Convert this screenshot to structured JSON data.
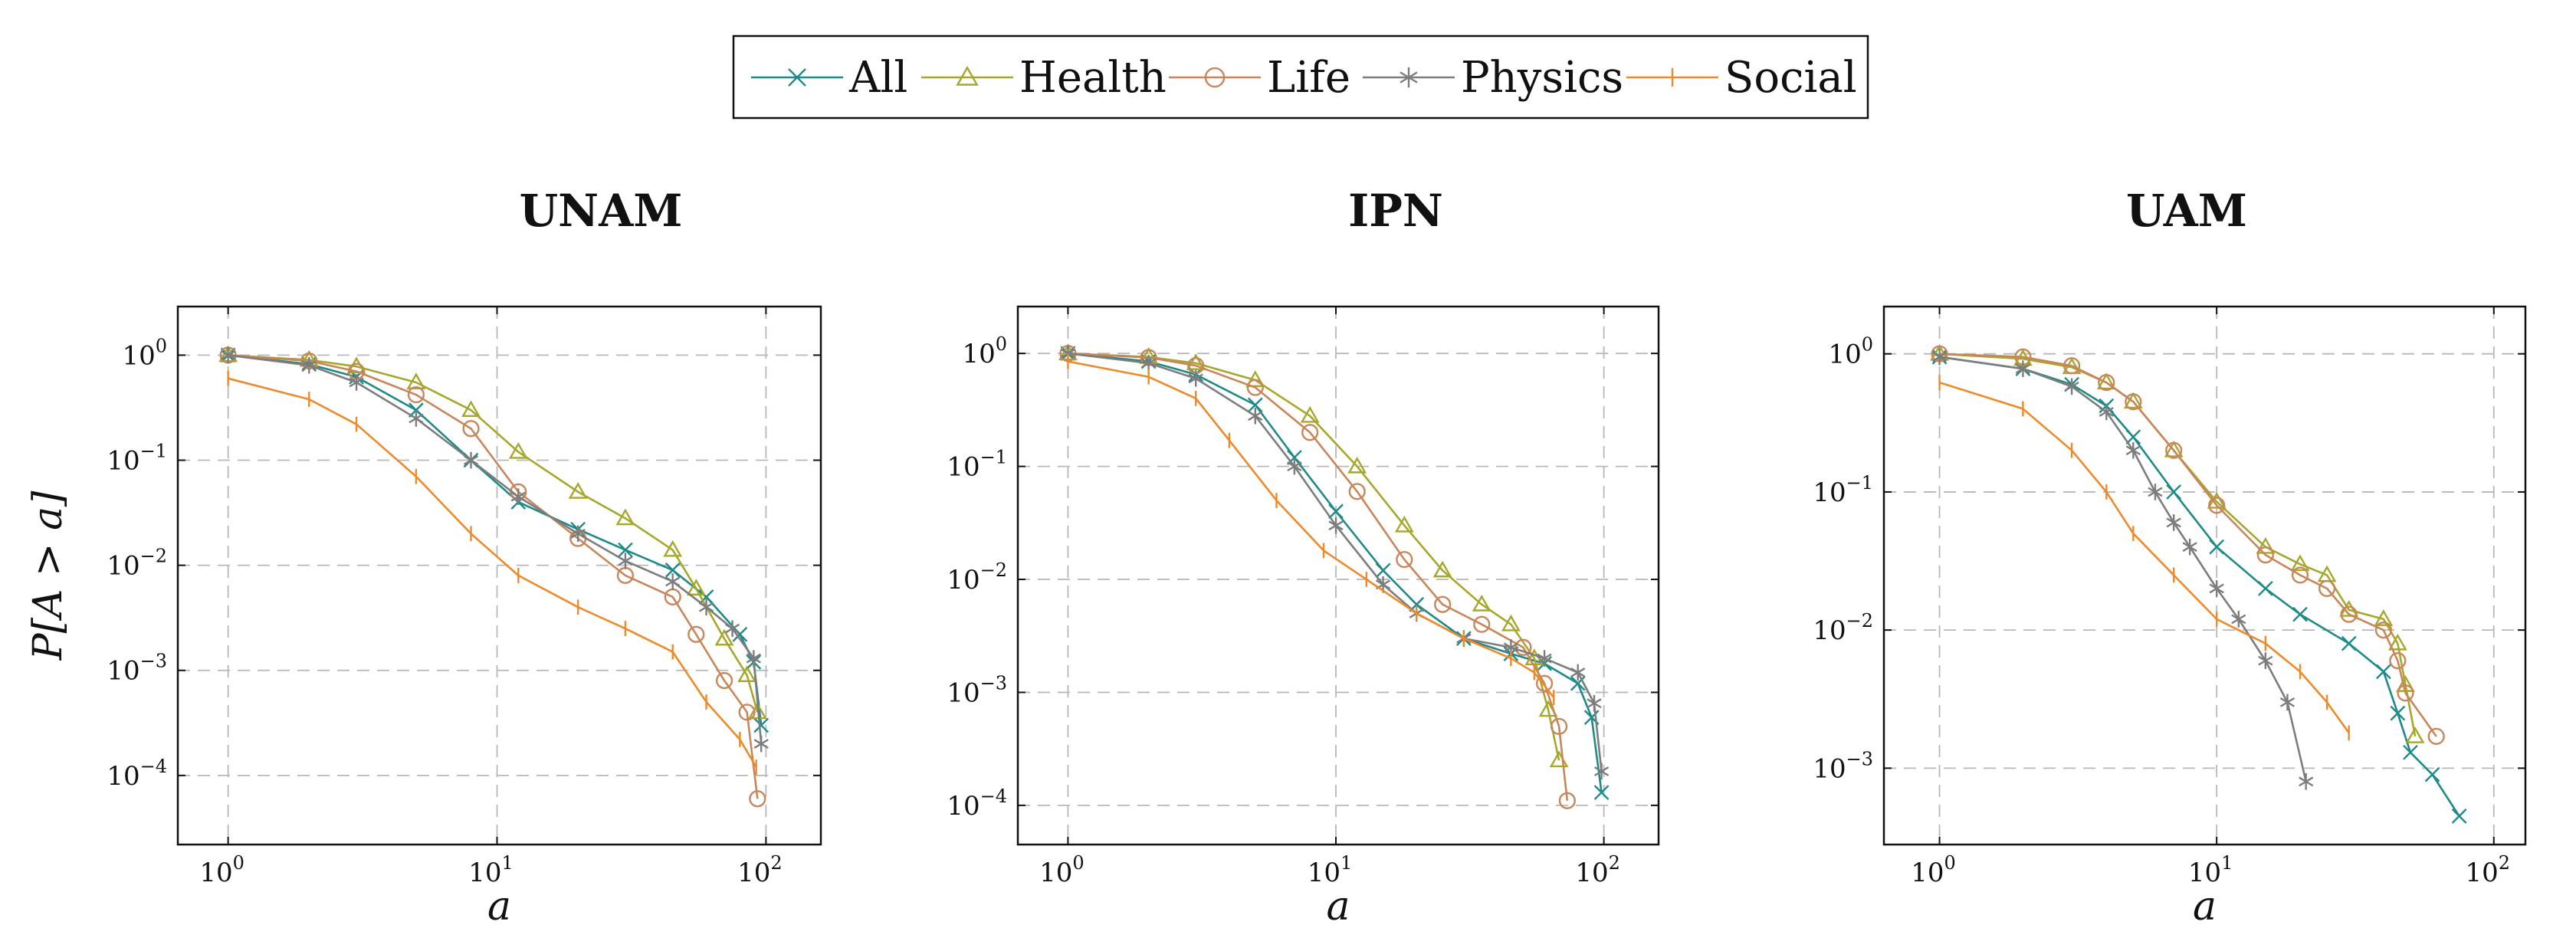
{
  "chart_data": {
    "type": "line",
    "scale": "log-log",
    "legend": {
      "position": "top-center",
      "entries": [
        "All",
        "Health",
        "Life",
        "Physics",
        "Social"
      ]
    },
    "series_style": {
      "All": {
        "color": "#1f8a8a",
        "marker": "x"
      },
      "Health": {
        "color": "#a5a82b",
        "marker": "triangle"
      },
      "Life": {
        "color": "#c8865a",
        "marker": "circle"
      },
      "Physics": {
        "color": "#7d7d7d",
        "marker": "asterisk"
      },
      "Social": {
        "color": "#ee8a2a",
        "marker": "vbar"
      }
    },
    "panels": [
      {
        "title": "UNAM",
        "xlabel": "a",
        "ylabel": "P[A > a]",
        "xlim": [
          0.65,
          160
        ],
        "ylim": [
          2.2e-05,
          2.9
        ],
        "xticks": [
          {
            "base": "10",
            "exp": "0"
          },
          {
            "base": "10",
            "exp": "1"
          },
          {
            "base": "10",
            "exp": "2"
          }
        ],
        "yticks": [
          {
            "base": "10",
            "exp": "0"
          },
          {
            "base": "10",
            "exp": "−1"
          },
          {
            "base": "10",
            "exp": "−2"
          },
          {
            "base": "10",
            "exp": "−3"
          },
          {
            "base": "10",
            "exp": "−4"
          }
        ],
        "xtick_values": [
          1,
          10,
          100
        ],
        "ytick_values": [
          1,
          0.1,
          0.01,
          0.001,
          0.0001
        ],
        "series": [
          {
            "name": "All",
            "points": [
              [
                1,
                1.0
              ],
              [
                2,
                0.82
              ],
              [
                3,
                0.62
              ],
              [
                5,
                0.3
              ],
              [
                8,
                0.1
              ],
              [
                12,
                0.04
              ],
              [
                20,
                0.022
              ],
              [
                30,
                0.014
              ],
              [
                45,
                0.009
              ],
              [
                60,
                0.005
              ],
              [
                80,
                0.0022
              ],
              [
                90,
                0.0012
              ],
              [
                96,
                0.0003
              ]
            ]
          },
          {
            "name": "Health",
            "points": [
              [
                1,
                1.0
              ],
              [
                2,
                0.9
              ],
              [
                3,
                0.78
              ],
              [
                5,
                0.55
              ],
              [
                8,
                0.3
              ],
              [
                12,
                0.12
              ],
              [
                20,
                0.05
              ],
              [
                30,
                0.028
              ],
              [
                45,
                0.014
              ],
              [
                55,
                0.006
              ],
              [
                70,
                0.002
              ],
              [
                85,
                0.0009
              ],
              [
                93,
                0.0004
              ]
            ]
          },
          {
            "name": "Life",
            "points": [
              [
                1,
                1.0
              ],
              [
                2,
                0.88
              ],
              [
                3,
                0.7
              ],
              [
                5,
                0.42
              ],
              [
                8,
                0.2
              ],
              [
                12,
                0.05
              ],
              [
                20,
                0.018
              ],
              [
                30,
                0.008
              ],
              [
                45,
                0.005
              ],
              [
                55,
                0.0022
              ],
              [
                70,
                0.0008
              ],
              [
                85,
                0.0004
              ],
              [
                93,
                6e-05
              ]
            ]
          },
          {
            "name": "Physics",
            "points": [
              [
                1,
                1.0
              ],
              [
                2,
                0.8
              ],
              [
                3,
                0.55
              ],
              [
                5,
                0.25
              ],
              [
                8,
                0.1
              ],
              [
                12,
                0.045
              ],
              [
                20,
                0.02
              ],
              [
                30,
                0.011
              ],
              [
                45,
                0.007
              ],
              [
                60,
                0.004
              ],
              [
                75,
                0.0025
              ],
              [
                90,
                0.0013
              ],
              [
                96,
                0.0002
              ]
            ]
          },
          {
            "name": "Social",
            "points": [
              [
                1,
                0.6
              ],
              [
                2,
                0.38
              ],
              [
                3,
                0.22
              ],
              [
                5,
                0.07
              ],
              [
                8,
                0.02
              ],
              [
                12,
                0.008
              ],
              [
                20,
                0.004
              ],
              [
                30,
                0.0025
              ],
              [
                45,
                0.0015
              ],
              [
                60,
                0.0005
              ],
              [
                80,
                0.00022
              ],
              [
                92,
                0.00012
              ]
            ]
          }
        ]
      },
      {
        "title": "IPN",
        "xlabel": "a",
        "ylabel": "",
        "xlim": [
          0.65,
          160
        ],
        "ylim": [
          4.5e-05,
          2.6
        ],
        "xticks": [
          {
            "base": "10",
            "exp": "0"
          },
          {
            "base": "10",
            "exp": "1"
          },
          {
            "base": "10",
            "exp": "2"
          }
        ],
        "yticks": [
          {
            "base": "10",
            "exp": "0"
          },
          {
            "base": "10",
            "exp": "−1"
          },
          {
            "base": "10",
            "exp": "−2"
          },
          {
            "base": "10",
            "exp": "−3"
          },
          {
            "base": "10",
            "exp": "−4"
          }
        ],
        "xtick_values": [
          1,
          10,
          100
        ],
        "ytick_values": [
          1,
          0.1,
          0.01,
          0.001,
          0.0001
        ],
        "series": [
          {
            "name": "All",
            "points": [
              [
                1,
                1.0
              ],
              [
                2,
                0.85
              ],
              [
                3,
                0.65
              ],
              [
                5,
                0.35
              ],
              [
                7,
                0.12
              ],
              [
                10,
                0.04
              ],
              [
                15,
                0.012
              ],
              [
                20,
                0.006
              ],
              [
                30,
                0.003
              ],
              [
                45,
                0.0022
              ],
              [
                60,
                0.0018
              ],
              [
                80,
                0.0012
              ],
              [
                90,
                0.0006
              ],
              [
                98,
                0.00013
              ]
            ]
          },
          {
            "name": "Health",
            "points": [
              [
                1,
                1.0
              ],
              [
                2,
                0.93
              ],
              [
                3,
                0.82
              ],
              [
                5,
                0.58
              ],
              [
                8,
                0.28
              ],
              [
                12,
                0.1
              ],
              [
                18,
                0.03
              ],
              [
                25,
                0.012
              ],
              [
                35,
                0.006
              ],
              [
                45,
                0.004
              ],
              [
                55,
                0.002
              ],
              [
                62,
                0.0007
              ],
              [
                68,
                0.00025
              ]
            ]
          },
          {
            "name": "Life",
            "points": [
              [
                1,
                1.0
              ],
              [
                2,
                0.92
              ],
              [
                3,
                0.78
              ],
              [
                5,
                0.5
              ],
              [
                8,
                0.2
              ],
              [
                12,
                0.06
              ],
              [
                18,
                0.015
              ],
              [
                25,
                0.006
              ],
              [
                35,
                0.004
              ],
              [
                50,
                0.0025
              ],
              [
                60,
                0.0012
              ],
              [
                68,
                0.0005
              ],
              [
                73,
                0.00011
              ]
            ]
          },
          {
            "name": "Physics",
            "points": [
              [
                1,
                1.0
              ],
              [
                2,
                0.82
              ],
              [
                3,
                0.6
              ],
              [
                5,
                0.28
              ],
              [
                7,
                0.1
              ],
              [
                10,
                0.03
              ],
              [
                15,
                0.009
              ],
              [
                20,
                0.005
              ],
              [
                30,
                0.003
              ],
              [
                45,
                0.0025
              ],
              [
                60,
                0.002
              ],
              [
                80,
                0.0015
              ],
              [
                92,
                0.0008
              ],
              [
                98,
                0.0002
              ]
            ]
          },
          {
            "name": "Social",
            "points": [
              [
                1,
                0.85
              ],
              [
                2,
                0.62
              ],
              [
                3,
                0.4
              ],
              [
                4,
                0.17
              ],
              [
                6,
                0.05
              ],
              [
                9,
                0.018
              ],
              [
                13,
                0.01
              ],
              [
                20,
                0.005
              ],
              [
                30,
                0.003
              ],
              [
                45,
                0.002
              ],
              [
                55,
                0.0015
              ],
              [
                65,
                0.0009
              ]
            ]
          }
        ]
      },
      {
        "title": "UAM",
        "xlabel": "a",
        "ylabel": "",
        "xlim": [
          0.63,
          130
        ],
        "ylim": [
          0.00028,
          2.2
        ],
        "xticks": [
          {
            "base": "10",
            "exp": "0"
          },
          {
            "base": "10",
            "exp": "1"
          },
          {
            "base": "10",
            "exp": "2"
          }
        ],
        "yticks": [
          {
            "base": "10",
            "exp": "0"
          },
          {
            "base": "10",
            "exp": "−1"
          },
          {
            "base": "10",
            "exp": "−2"
          },
          {
            "base": "10",
            "exp": "−3"
          }
        ],
        "xtick_values": [
          1,
          10,
          100
        ],
        "ytick_values": [
          1,
          0.1,
          0.01,
          0.001
        ],
        "series": [
          {
            "name": "All",
            "points": [
              [
                1,
                0.95
              ],
              [
                2,
                0.78
              ],
              [
                3,
                0.6
              ],
              [
                4,
                0.42
              ],
              [
                5,
                0.25
              ],
              [
                7,
                0.1
              ],
              [
                10,
                0.04
              ],
              [
                15,
                0.02
              ],
              [
                20,
                0.013
              ],
              [
                30,
                0.008
              ],
              [
                40,
                0.005
              ],
              [
                45,
                0.0025
              ],
              [
                50,
                0.0013
              ],
              [
                60,
                0.0009
              ],
              [
                75,
                0.00045
              ]
            ]
          },
          {
            "name": "Health",
            "points": [
              [
                1,
                1.0
              ],
              [
                2,
                0.92
              ],
              [
                3,
                0.8
              ],
              [
                4,
                0.62
              ],
              [
                5,
                0.45
              ],
              [
                7,
                0.2
              ],
              [
                10,
                0.085
              ],
              [
                15,
                0.04
              ],
              [
                20,
                0.03
              ],
              [
                25,
                0.025
              ],
              [
                30,
                0.014
              ],
              [
                40,
                0.012
              ],
              [
                45,
                0.008
              ],
              [
                48,
                0.004
              ],
              [
                52,
                0.0017
              ]
            ]
          },
          {
            "name": "Life",
            "points": [
              [
                1,
                1.0
              ],
              [
                2,
                0.95
              ],
              [
                3,
                0.82
              ],
              [
                4,
                0.62
              ],
              [
                5,
                0.45
              ],
              [
                7,
                0.2
              ],
              [
                10,
                0.08
              ],
              [
                15,
                0.035
              ],
              [
                20,
                0.025
              ],
              [
                25,
                0.02
              ],
              [
                30,
                0.013
              ],
              [
                40,
                0.01
              ],
              [
                45,
                0.006
              ],
              [
                48,
                0.0035
              ],
              [
                62,
                0.0017
              ]
            ]
          },
          {
            "name": "Physics",
            "points": [
              [
                1,
                0.95
              ],
              [
                2,
                0.78
              ],
              [
                3,
                0.58
              ],
              [
                4,
                0.38
              ],
              [
                5,
                0.2
              ],
              [
                6,
                0.1
              ],
              [
                7,
                0.06
              ],
              [
                8,
                0.04
              ],
              [
                10,
                0.02
              ],
              [
                12,
                0.012
              ],
              [
                15,
                0.006
              ],
              [
                18,
                0.003
              ],
              [
                21,
                0.0008
              ]
            ]
          },
          {
            "name": "Social",
            "points": [
              [
                1,
                0.62
              ],
              [
                2,
                0.4
              ],
              [
                3,
                0.2
              ],
              [
                4,
                0.1
              ],
              [
                5,
                0.05
              ],
              [
                7,
                0.025
              ],
              [
                10,
                0.012
              ],
              [
                15,
                0.008
              ],
              [
                20,
                0.005
              ],
              [
                25,
                0.003
              ],
              [
                30,
                0.0018
              ]
            ]
          }
        ]
      }
    ]
  }
}
